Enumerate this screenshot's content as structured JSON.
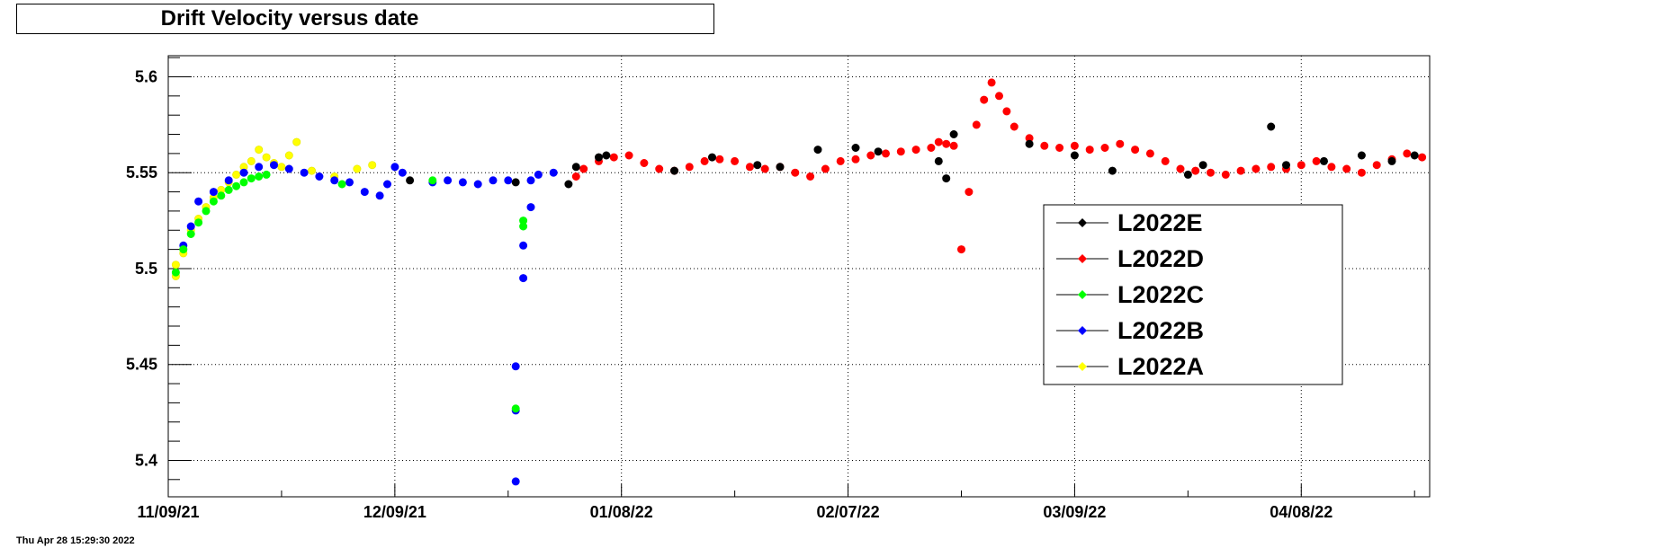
{
  "footer_timestamp": "Thu Apr 28 15:29:30 2022",
  "chart_data": {
    "type": "scatter",
    "title": "Drift Velocity versus date",
    "xlabel": "",
    "ylabel": "",
    "x_type": "date",
    "xlim": [
      "2021-11-09",
      "2022-04-25"
    ],
    "ylim": [
      5.381,
      5.611
    ],
    "x_ticks": [
      "11/09/21",
      "12/09/21",
      "01/08/22",
      "02/07/22",
      "03/09/22",
      "04/08/22"
    ],
    "y_ticks": [
      "5.4",
      "5.45",
      "5.5",
      "5.55",
      "5.6"
    ],
    "grid": true,
    "legend_position": "right",
    "series": [
      {
        "name": "L2022E",
        "color": "#000000",
        "points": [
          [
            "2021-12-11",
            5.546
          ],
          [
            "2021-12-25",
            5.545
          ],
          [
            "2022-01-01",
            5.544
          ],
          [
            "2022-01-02",
            5.553
          ],
          [
            "2022-01-05",
            5.558
          ],
          [
            "2022-01-06",
            5.559
          ],
          [
            "2022-01-15",
            5.551
          ],
          [
            "2022-01-20",
            5.558
          ],
          [
            "2022-01-26",
            5.554
          ],
          [
            "2022-01-29",
            5.553
          ],
          [
            "2022-02-03",
            5.562
          ],
          [
            "2022-02-08",
            5.563
          ],
          [
            "2022-02-11",
            5.561
          ],
          [
            "2022-02-19",
            5.556
          ],
          [
            "2022-02-20",
            5.547
          ],
          [
            "2022-02-21",
            5.57
          ],
          [
            "2022-03-03",
            5.565
          ],
          [
            "2022-03-09",
            5.559
          ],
          [
            "2022-03-14",
            5.551
          ],
          [
            "2022-03-24",
            5.549
          ],
          [
            "2022-03-26",
            5.554
          ],
          [
            "2022-04-04",
            5.574
          ],
          [
            "2022-04-06",
            5.554
          ],
          [
            "2022-04-11",
            5.556
          ],
          [
            "2022-04-16",
            5.559
          ],
          [
            "2022-04-20",
            5.556
          ],
          [
            "2022-04-23",
            5.559
          ]
        ]
      },
      {
        "name": "L2022D",
        "color": "#ff0000",
        "points": [
          [
            "2022-01-02",
            5.548
          ],
          [
            "2022-01-03",
            5.552
          ],
          [
            "2022-01-05",
            5.556
          ],
          [
            "2022-01-07",
            5.558
          ],
          [
            "2022-01-09",
            5.559
          ],
          [
            "2022-01-11",
            5.555
          ],
          [
            "2022-01-13",
            5.552
          ],
          [
            "2022-01-15",
            5.551
          ],
          [
            "2022-01-17",
            5.553
          ],
          [
            "2022-01-19",
            5.556
          ],
          [
            "2022-01-21",
            5.557
          ],
          [
            "2022-01-23",
            5.556
          ],
          [
            "2022-01-25",
            5.553
          ],
          [
            "2022-01-27",
            5.552
          ],
          [
            "2022-01-29",
            5.553
          ],
          [
            "2022-01-31",
            5.55
          ],
          [
            "2022-02-02",
            5.548
          ],
          [
            "2022-02-04",
            5.552
          ],
          [
            "2022-02-06",
            5.556
          ],
          [
            "2022-02-08",
            5.557
          ],
          [
            "2022-02-10",
            5.559
          ],
          [
            "2022-02-12",
            5.56
          ],
          [
            "2022-02-14",
            5.561
          ],
          [
            "2022-02-16",
            5.562
          ],
          [
            "2022-02-18",
            5.563
          ],
          [
            "2022-02-19",
            5.566
          ],
          [
            "2022-02-20",
            5.565
          ],
          [
            "2022-02-21",
            5.564
          ],
          [
            "2022-02-22",
            5.51
          ],
          [
            "2022-02-23",
            5.54
          ],
          [
            "2022-02-24",
            5.575
          ],
          [
            "2022-02-25",
            5.588
          ],
          [
            "2022-02-26",
            5.597
          ],
          [
            "2022-02-27",
            5.59
          ],
          [
            "2022-02-28",
            5.582
          ],
          [
            "2022-03-01",
            5.574
          ],
          [
            "2022-03-03",
            5.568
          ],
          [
            "2022-03-05",
            5.564
          ],
          [
            "2022-03-07",
            5.563
          ],
          [
            "2022-03-09",
            5.564
          ],
          [
            "2022-03-11",
            5.562
          ],
          [
            "2022-03-13",
            5.563
          ],
          [
            "2022-03-15",
            5.565
          ],
          [
            "2022-03-17",
            5.562
          ],
          [
            "2022-03-19",
            5.56
          ],
          [
            "2022-03-21",
            5.556
          ],
          [
            "2022-03-23",
            5.552
          ],
          [
            "2022-03-25",
            5.551
          ],
          [
            "2022-03-27",
            5.55
          ],
          [
            "2022-03-29",
            5.549
          ],
          [
            "2022-03-31",
            5.551
          ],
          [
            "2022-04-02",
            5.552
          ],
          [
            "2022-04-04",
            5.553
          ],
          [
            "2022-04-06",
            5.552
          ],
          [
            "2022-04-08",
            5.554
          ],
          [
            "2022-04-10",
            5.556
          ],
          [
            "2022-04-12",
            5.553
          ],
          [
            "2022-04-14",
            5.552
          ],
          [
            "2022-04-16",
            5.55
          ],
          [
            "2022-04-18",
            5.554
          ],
          [
            "2022-04-20",
            5.557
          ],
          [
            "2022-04-22",
            5.56
          ],
          [
            "2022-04-24",
            5.558
          ]
        ]
      },
      {
        "name": "L2022C",
        "color": "#00ff00",
        "points": [
          [
            "2021-11-10",
            5.498
          ],
          [
            "2021-11-11",
            5.51
          ],
          [
            "2021-11-12",
            5.518
          ],
          [
            "2021-11-13",
            5.524
          ],
          [
            "2021-11-14",
            5.53
          ],
          [
            "2021-11-15",
            5.535
          ],
          [
            "2021-11-16",
            5.538
          ],
          [
            "2021-11-17",
            5.541
          ],
          [
            "2021-11-18",
            5.543
          ],
          [
            "2021-11-19",
            5.545
          ],
          [
            "2021-11-20",
            5.547
          ],
          [
            "2021-11-21",
            5.548
          ],
          [
            "2021-11-22",
            5.549
          ],
          [
            "2021-12-02",
            5.544
          ],
          [
            "2021-12-14",
            5.546
          ],
          [
            "2021-12-26",
            5.522
          ],
          [
            "2021-12-26",
            5.525
          ],
          [
            "2021-12-25",
            5.427
          ]
        ]
      },
      {
        "name": "L2022B",
        "color": "#0000ff",
        "points": [
          [
            "2021-11-11",
            5.512
          ],
          [
            "2021-11-12",
            5.522
          ],
          [
            "2021-11-13",
            5.535
          ],
          [
            "2021-11-15",
            5.54
          ],
          [
            "2021-11-17",
            5.546
          ],
          [
            "2021-11-19",
            5.55
          ],
          [
            "2021-11-21",
            5.553
          ],
          [
            "2021-11-23",
            5.554
          ],
          [
            "2021-11-25",
            5.552
          ],
          [
            "2021-11-27",
            5.55
          ],
          [
            "2021-11-29",
            5.548
          ],
          [
            "2021-12-01",
            5.546
          ],
          [
            "2021-12-03",
            5.545
          ],
          [
            "2021-12-05",
            5.54
          ],
          [
            "2021-12-07",
            5.538
          ],
          [
            "2021-12-08",
            5.544
          ],
          [
            "2021-12-09",
            5.553
          ],
          [
            "2021-12-10",
            5.55
          ],
          [
            "2021-12-14",
            5.545
          ],
          [
            "2021-12-16",
            5.546
          ],
          [
            "2021-12-18",
            5.545
          ],
          [
            "2021-12-20",
            5.544
          ],
          [
            "2021-12-22",
            5.546
          ],
          [
            "2021-12-24",
            5.546
          ],
          [
            "2021-12-25",
            5.449
          ],
          [
            "2021-12-25",
            5.426
          ],
          [
            "2021-12-25",
            5.389
          ],
          [
            "2021-12-26",
            5.495
          ],
          [
            "2021-12-26",
            5.512
          ],
          [
            "2021-12-27",
            5.532
          ],
          [
            "2021-12-27",
            5.546
          ],
          [
            "2021-12-28",
            5.549
          ],
          [
            "2021-12-30",
            5.55
          ]
        ]
      },
      {
        "name": "L2022A",
        "color": "#ffff00",
        "points": [
          [
            "2021-11-10",
            5.496
          ],
          [
            "2021-11-10",
            5.502
          ],
          [
            "2021-11-11",
            5.508
          ],
          [
            "2021-11-12",
            5.52
          ],
          [
            "2021-11-13",
            5.526
          ],
          [
            "2021-11-14",
            5.532
          ],
          [
            "2021-11-15",
            5.537
          ],
          [
            "2021-11-16",
            5.541
          ],
          [
            "2021-11-17",
            5.545
          ],
          [
            "2021-11-18",
            5.549
          ],
          [
            "2021-11-19",
            5.553
          ],
          [
            "2021-11-20",
            5.556
          ],
          [
            "2021-11-21",
            5.562
          ],
          [
            "2021-11-22",
            5.558
          ],
          [
            "2021-11-23",
            5.555
          ],
          [
            "2021-11-24",
            5.553
          ],
          [
            "2021-11-25",
            5.559
          ],
          [
            "2021-11-26",
            5.566
          ],
          [
            "2021-11-28",
            5.551
          ],
          [
            "2021-12-01",
            5.548
          ],
          [
            "2021-12-04",
            5.552
          ],
          [
            "2021-12-06",
            5.554
          ]
        ]
      }
    ]
  }
}
